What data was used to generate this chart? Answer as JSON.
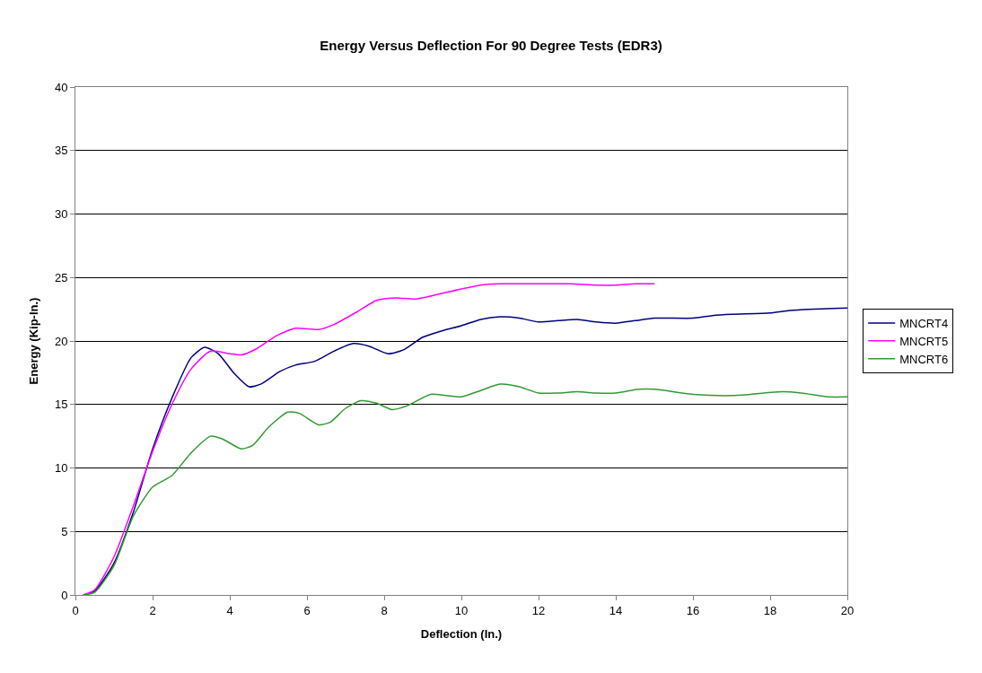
{
  "chart_data": {
    "type": "line",
    "title": "Energy Versus Deflection For 90 Degree Tests (EDR3)",
    "xlabel": "Deflection (In.)",
    "ylabel": "Energy (Kip-In.)",
    "xlim": [
      0,
      20
    ],
    "xticks": [
      0,
      2,
      4,
      6,
      8,
      10,
      12,
      14,
      16,
      18,
      20
    ],
    "ylim": [
      0,
      40
    ],
    "yticks": [
      0,
      5,
      10,
      15,
      20,
      25,
      30,
      35,
      40
    ],
    "grid": "y",
    "legend": "right",
    "marker": "none",
    "line_style": "solid",
    "series": [
      {
        "name": "MNCRT4",
        "color": "#000080",
        "x": [
          0.2,
          0.5,
          1,
          1.5,
          2,
          2.5,
          3,
          3.35,
          3.7,
          4.1,
          4.5,
          4.8,
          5.3,
          5.7,
          6.2,
          6.7,
          7.2,
          7.6,
          8.1,
          8.5,
          9,
          9.5,
          10,
          10.5,
          11,
          11.5,
          12,
          12.5,
          13,
          13.5,
          14,
          14.5,
          15,
          16,
          16.5,
          17,
          18,
          18.5,
          19,
          20
        ],
        "values": [
          0,
          0.3,
          2.5,
          6.5,
          11.5,
          15.5,
          18.7,
          19.5,
          19,
          17.5,
          16.4,
          16.6,
          17.6,
          18.1,
          18.4,
          19.2,
          19.8,
          19.6,
          19,
          19.3,
          20.3,
          20.8,
          21.2,
          21.7,
          21.9,
          21.8,
          21.5,
          21.6,
          21.7,
          21.5,
          21.4,
          21.6,
          21.8,
          21.8,
          22,
          22.1,
          22.2,
          22.4,
          22.5,
          22.6
        ]
      },
      {
        "name": "MNCRT5",
        "color": "#ff00ff",
        "x": [
          0.2,
          0.5,
          1,
          1.5,
          2,
          2.5,
          3,
          3.5,
          4,
          4.3,
          4.7,
          5.2,
          5.7,
          6.3,
          6.7,
          7.3,
          7.8,
          8.3,
          8.8,
          9.3,
          10,
          10.5,
          11,
          12,
          12.8,
          13.5,
          14,
          14.5,
          15
        ],
        "values": [
          0,
          0.4,
          3,
          7,
          11.3,
          15,
          17.8,
          19.2,
          19,
          18.9,
          19.4,
          20.4,
          21,
          20.9,
          21.3,
          22.3,
          23.2,
          23.4,
          23.3,
          23.6,
          24.1,
          24.4,
          24.5,
          24.5,
          24.5,
          24.4,
          24.4,
          24.5,
          24.5
        ]
      },
      {
        "name": "MNCRT6",
        "color": "#339933",
        "x": [
          0.2,
          0.5,
          1,
          1.5,
          2,
          2.5,
          3,
          3.5,
          3.8,
          4.3,
          4.6,
          5,
          5.5,
          5.8,
          6.3,
          6.6,
          7,
          7.4,
          7.8,
          8.2,
          8.6,
          9.2,
          9.6,
          10,
          10.5,
          11,
          11.5,
          12,
          12.5,
          13,
          13.5,
          14,
          14.6,
          15,
          16,
          17,
          17.5,
          18.3,
          18.8,
          19.5,
          20
        ],
        "values": [
          0,
          0.2,
          2.3,
          6.2,
          8.5,
          9.4,
          11.2,
          12.5,
          12.3,
          11.5,
          11.8,
          13.2,
          14.4,
          14.3,
          13.4,
          13.6,
          14.7,
          15.3,
          15.1,
          14.6,
          14.9,
          15.8,
          15.7,
          15.6,
          16.1,
          16.6,
          16.4,
          15.9,
          15.9,
          16,
          15.9,
          15.9,
          16.2,
          16.2,
          15.8,
          15.7,
          15.8,
          16,
          15.9,
          15.6,
          15.6
        ]
      }
    ]
  }
}
